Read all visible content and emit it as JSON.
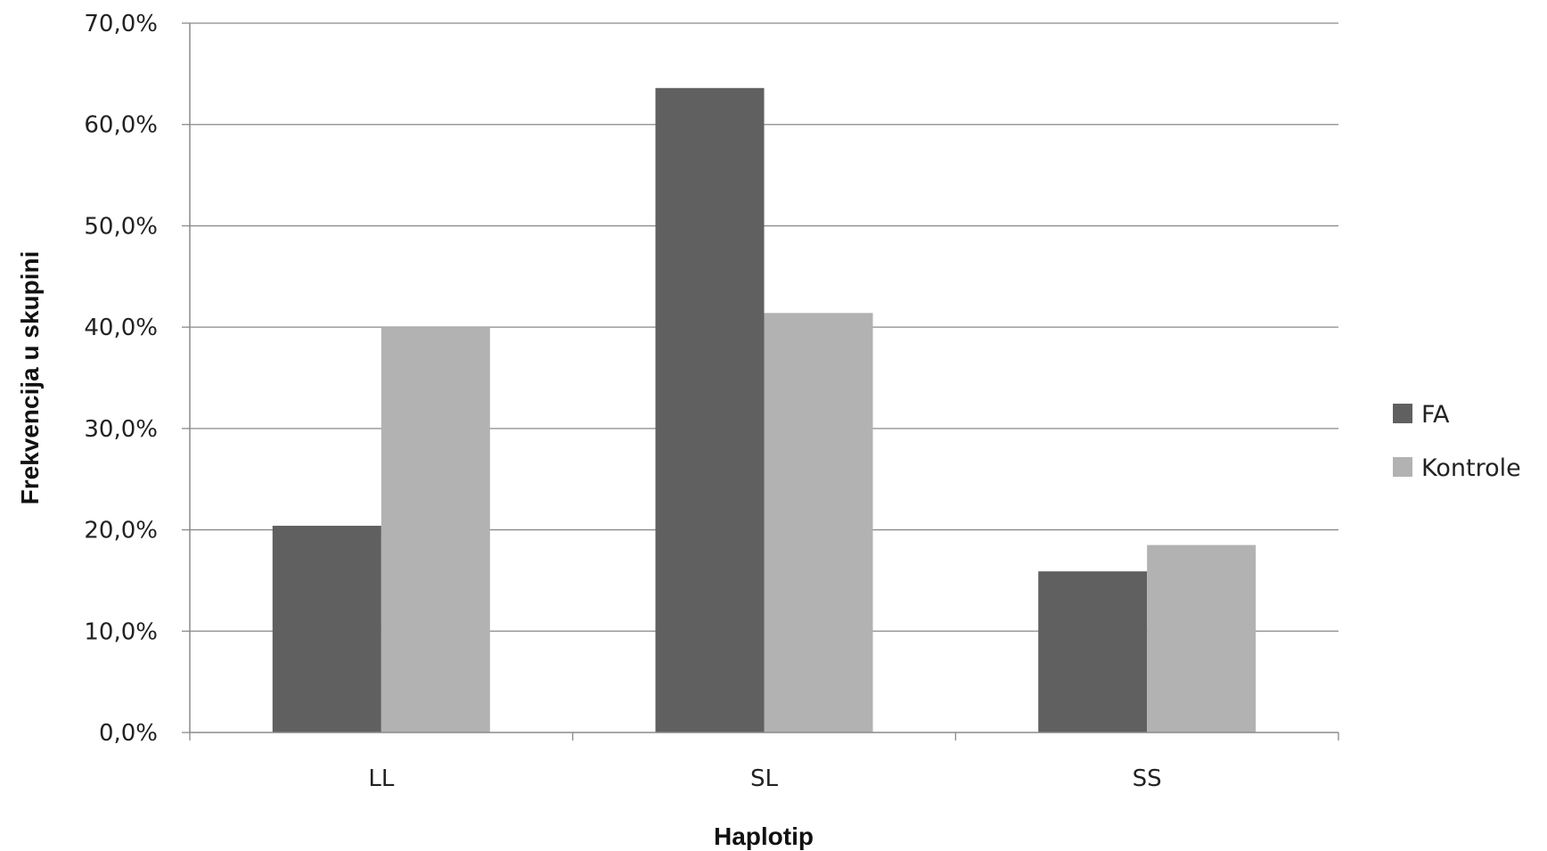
{
  "chart_data": {
    "type": "bar",
    "categories": [
      "LL",
      "SL",
      "SS"
    ],
    "series": [
      {
        "name": "FA",
        "values": [
          20.4,
          63.6,
          15.9
        ],
        "color": "#606060"
      },
      {
        "name": "Kontrole",
        "values": [
          40.0,
          41.4,
          18.5
        ],
        "color": "#b2b2b2"
      }
    ],
    "yticks": [
      "0,0%",
      "10,0%",
      "20,0%",
      "30,0%",
      "40,0%",
      "50,0%",
      "60,0%",
      "70,0%"
    ],
    "ylim": [
      0,
      70
    ],
    "xlabel": "Haplotip",
    "ylabel": "Frekvencija u skupini",
    "grid": true,
    "legend_position": "right"
  }
}
